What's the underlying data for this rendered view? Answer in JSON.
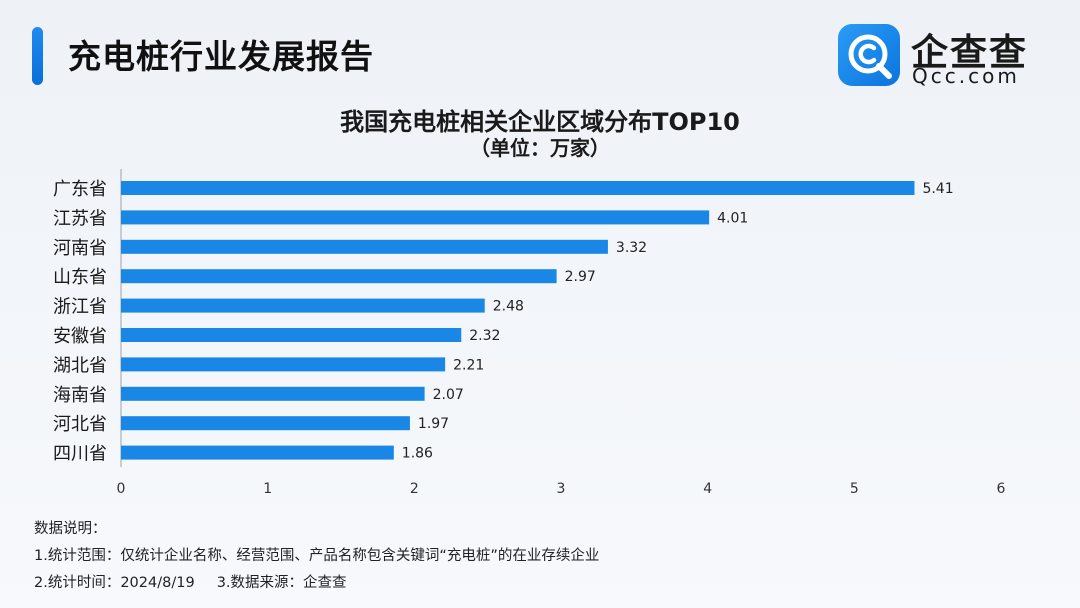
{
  "header": {
    "title": "充电桩行业发展报告"
  },
  "logo": {
    "name": "企查查",
    "url": "Qcc.com",
    "icon": "qcc-logo-icon"
  },
  "chart_data": {
    "type": "bar",
    "orientation": "horizontal",
    "title": "我国充电桩相关企业区域分布TOP10",
    "subtitle": "（单位：万家）",
    "categories": [
      "广东省",
      "江苏省",
      "河南省",
      "山东省",
      "浙江省",
      "安徽省",
      "湖北省",
      "海南省",
      "河北省",
      "四川省"
    ],
    "values": [
      5.41,
      4.01,
      3.32,
      2.97,
      2.48,
      2.32,
      2.21,
      2.07,
      1.97,
      1.86
    ],
    "value_labels": [
      "5.41",
      "4.01",
      "3.32",
      "2.97",
      "2.48",
      "2.32",
      "2.21",
      "2.07",
      "1.97",
      "1.86"
    ],
    "xlim": [
      0,
      6
    ],
    "xticks": [
      "0",
      "1",
      "2",
      "3",
      "4",
      "5",
      "6"
    ],
    "grid": false,
    "bar_color": "#1a87e6"
  },
  "notes": {
    "heading": "数据说明：",
    "line1": "1.统计范围：仅统计企业名称、经营范围、产品名称包含关键词“充电桩”的在业存续企业",
    "line2a": "2.统计时间：2024/8/19",
    "line2b": "3.数据来源：企查查"
  }
}
